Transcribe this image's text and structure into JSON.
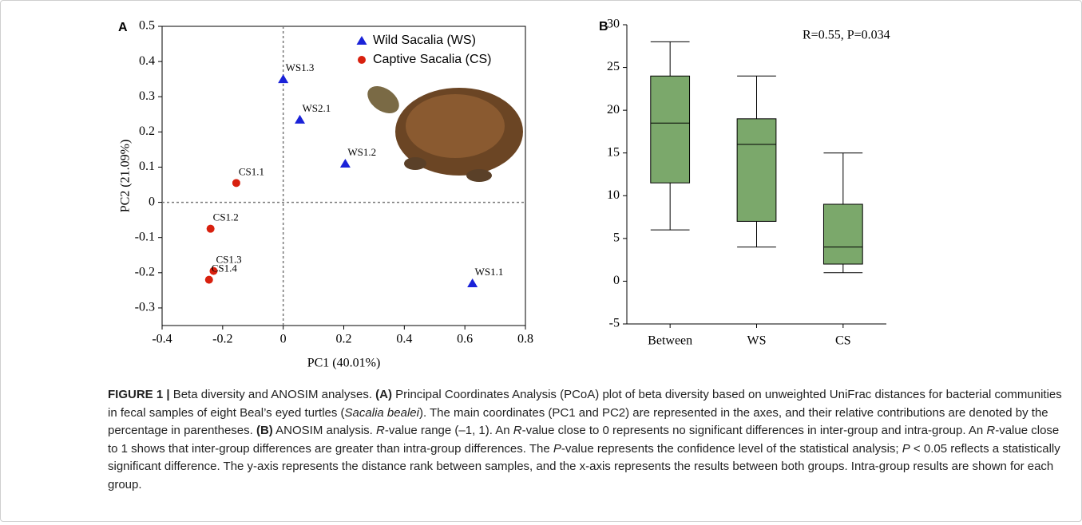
{
  "chart_data": [
    {
      "type": "scatter",
      "label": "A",
      "xlabel": "PC1 (40.01%)",
      "ylabel": "PC2 (21.09%)",
      "xlim": [
        -0.4,
        0.8
      ],
      "xticks": [
        -0.4,
        -0.2,
        0,
        0.2,
        0.4,
        0.6,
        0.8
      ],
      "ylim": [
        -0.35,
        0.5
      ],
      "yticks": [
        0.5,
        0.4,
        0.3,
        0.2,
        0.1,
        0,
        -0.1,
        -0.2,
        -0.3
      ],
      "legend": "upper right",
      "series": [
        {
          "name": "Wild Sacalia (WS)",
          "color": "#1a22d8",
          "marker": "triangle",
          "labels": [
            "WS1.3",
            "WS2.1",
            "WS1.2",
            "WS1.1"
          ],
          "x": [
            0,
            0.055,
            0.205,
            0.625
          ],
          "values": [
            0.35,
            0.235,
            0.11,
            -0.23
          ]
        },
        {
          "name": "Captive Sacalia (CS)",
          "color": "#d8200e",
          "marker": "circle",
          "labels": [
            "CS1.1",
            "CS1.2",
            "CS1.3",
            "CS1.4"
          ],
          "x": [
            -0.155,
            -0.24,
            -0.23,
            -0.245
          ],
          "values": [
            0.055,
            -0.075,
            -0.195,
            -0.22
          ]
        }
      ]
    },
    {
      "type": "box",
      "label": "B",
      "annotation": "R=0.55,  P=0.034",
      "color": "#7ba86b",
      "categories": [
        "Between",
        "WS",
        "CS"
      ],
      "ylim": [
        -5,
        30
      ],
      "yticks": [
        -5,
        0,
        5,
        10,
        15,
        20,
        25,
        30
      ],
      "whisker_low": [
        6,
        4,
        1
      ],
      "q1": [
        11.5,
        7,
        2
      ],
      "median": [
        18.5,
        16,
        4
      ],
      "q3": [
        24,
        19,
        9
      ],
      "whisker_high": [
        28,
        24,
        15
      ]
    }
  ],
  "caption": [
    "FIGURE 1 |",
    " Beta diversity and ANOSIM analyses. ",
    "(A)",
    " Principal Coordinates Analysis (PCoA) plot of beta diversity based on unweighted UniFrac distances for bacterial communities in fecal samples of eight Beal’s eyed turtles (",
    "Sacalia bealei",
    "). The main coordinates (PC1 and PC2) are represented in the axes, and their relative contributions are denoted by the percentage in parentheses. ",
    "(B)",
    " ANOSIM analysis. ",
    "R",
    "-value range (–1, 1). An ",
    "R",
    "-value close to 0 represents no significant differences in inter-group and intra-group. An ",
    "R",
    "-value close to 1 shows that inter-group differences are greater than intra-group differences. The ",
    "P",
    "-value represents the confidence level of the statistical analysis; ",
    "P",
    " < 0.05 reflects a statistically significant difference. The y-axis represents the distance rank between samples, and the x-axis represents the results between both groups. Intra-group results are shown for each group."
  ]
}
